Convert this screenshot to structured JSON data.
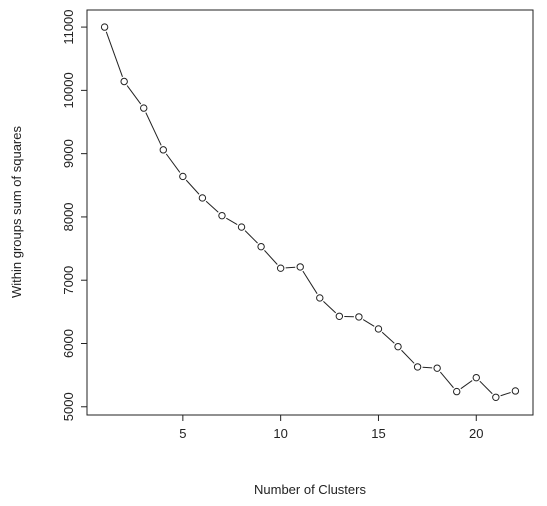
{
  "chart_data": {
    "type": "line",
    "title": "",
    "xlabel": "Number of Clusters",
    "ylabel": "Within groups sum of squares",
    "xlim": [
      0.1,
      22.9
    ],
    "ylim": [
      4870,
      11270
    ],
    "grid": false,
    "legend": "none",
    "x_ticks": [
      5,
      10,
      15,
      20
    ],
    "x_tick_labels": [
      "5",
      "10",
      "15",
      "20"
    ],
    "y_ticks": [
      5000,
      6000,
      7000,
      8000,
      9000,
      10000,
      11000
    ],
    "y_tick_labels": [
      "5000",
      "6000",
      "7000",
      "8000",
      "9000",
      "10000",
      "11000"
    ],
    "line_style": "dashed line with open circle markers",
    "series": [
      {
        "x": [
          1,
          2,
          3,
          4,
          5,
          6,
          7,
          8,
          9,
          10,
          11,
          12,
          13,
          14,
          15,
          16,
          17,
          18,
          19,
          20,
          21,
          22
        ],
        "values": [
          11000,
          10140,
          9720,
          9060,
          8640,
          8300,
          8020,
          7840,
          7530,
          7190,
          7210,
          6720,
          6430,
          6420,
          6230,
          5950,
          5630,
          5610,
          5240,
          5460,
          5150,
          5250
        ]
      }
    ]
  }
}
